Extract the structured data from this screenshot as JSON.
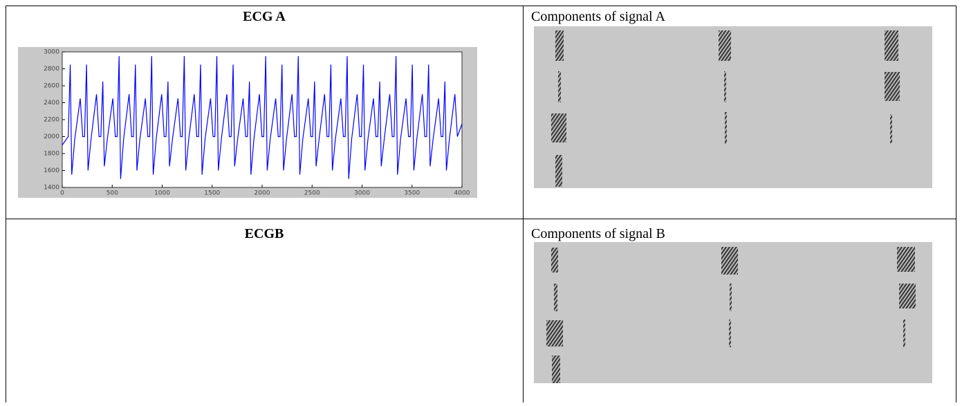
{
  "table": {
    "rows": [
      [
        "ECG A",
        "Components of signal A"
      ],
      [
        "ECGB",
        "Components of signal B"
      ]
    ]
  },
  "chart_data": {
    "type": "line",
    "x": [
      0,
      60,
      80,
      95,
      125,
      180,
      205,
      223,
      243,
      258,
      288,
      343,
      368,
      386,
      406,
      421,
      451,
      506,
      531,
      549,
      569,
      584,
      614,
      669,
      694,
      712,
      732,
      747,
      777,
      832,
      857,
      875,
      895,
      910,
      940,
      995,
      1020,
      1038,
      1058,
      1073,
      1103,
      1158,
      1183,
      1201,
      1221,
      1236,
      1266,
      1321,
      1346,
      1364,
      1384,
      1399,
      1429,
      1484,
      1509,
      1527,
      1547,
      1562,
      1592,
      1647,
      1672,
      1690,
      1710,
      1725,
      1755,
      1810,
      1835,
      1853,
      1873,
      1888,
      1918,
      1973,
      1998,
      2016,
      2036,
      2051,
      2081,
      2136,
      2161,
      2179,
      2199,
      2214,
      2244,
      2299,
      2324,
      2342,
      2362,
      2377,
      2407,
      2462,
      2487,
      2505,
      2525,
      2540,
      2570,
      2625,
      2650,
      2668,
      2688,
      2703,
      2733,
      2788,
      2813,
      2831,
      2851,
      2866,
      2896,
      2951,
      2976,
      2994,
      3014,
      3029,
      3059,
      3114,
      3139,
      3157,
      3177,
      3192,
      3222,
      3277,
      3302,
      3320,
      3340,
      3355,
      3385,
      3440,
      3465,
      3483,
      3503,
      3518,
      3548,
      3603,
      3628,
      3646,
      3666,
      3681,
      3711,
      3766,
      3791,
      3809,
      3829,
      3844,
      3874,
      3929,
      3954,
      4000
    ],
    "series": [
      {
        "color": "#0000ff",
        "values": [
          1900,
          2000,
          2850,
          1550,
          1970,
          2450,
          2000,
          2000,
          2850,
          1600,
          1970,
          2500,
          2000,
          2000,
          2650,
          1650,
          1970,
          2450,
          2000,
          2000,
          2950,
          1500,
          1970,
          2500,
          2000,
          2000,
          2850,
          1600,
          1970,
          2450,
          2000,
          2000,
          2950,
          1550,
          1970,
          2500,
          2000,
          2000,
          2650,
          1650,
          1970,
          2450,
          2000,
          2000,
          2950,
          1600,
          1970,
          2500,
          2000,
          2000,
          2850,
          1550,
          1970,
          2450,
          2000,
          2000,
          2950,
          1600,
          1970,
          2500,
          2000,
          2000,
          2850,
          1650,
          1970,
          2450,
          2000,
          2000,
          2650,
          1550,
          1970,
          2500,
          2000,
          2000,
          2950,
          1600,
          1970,
          2450,
          2000,
          2000,
          2850,
          1600,
          1970,
          2500,
          2000,
          2000,
          2950,
          1550,
          1970,
          2450,
          2000,
          2000,
          2650,
          1650,
          1970,
          2500,
          2000,
          2000,
          2850,
          1600,
          1970,
          2450,
          2000,
          2000,
          2950,
          1500,
          1970,
          2500,
          2000,
          2000,
          2850,
          1600,
          1970,
          2450,
          2000,
          2000,
          2650,
          1650,
          1970,
          2500,
          2000,
          2000,
          2950,
          1550,
          1970,
          2450,
          2000,
          2000,
          2850,
          1600,
          1970,
          2500,
          2000,
          2000,
          2850,
          1650,
          1970,
          2450,
          2000,
          2000,
          2650,
          1600,
          1970,
          2500,
          2000,
          2150
        ]
      }
    ],
    "xlim": [
      0,
      4000
    ],
    "ylim": [
      1400,
      3000
    ],
    "xticks": [
      0,
      500,
      1000,
      1500,
      2000,
      2500,
      3000,
      3500,
      4000
    ],
    "yticks": [
      1400,
      1600,
      1800,
      2000,
      2200,
      2400,
      2600,
      2800,
      3000
    ]
  }
}
